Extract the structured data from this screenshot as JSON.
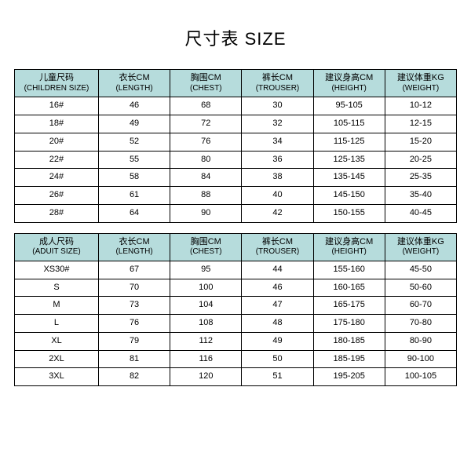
{
  "title": "尺寸表 SIZE",
  "colors": {
    "header_bg": "#b6dcdc",
    "border": "#000000",
    "background": "#ffffff",
    "text": "#000000"
  },
  "children_table": {
    "headers": [
      {
        "main": "儿童尺码",
        "sub": "(CHILDREN SIZE)"
      },
      {
        "main": "衣长CM",
        "sub": "(LENGTH)"
      },
      {
        "main": "胸围CM",
        "sub": "(CHEST)"
      },
      {
        "main": "裤长CM",
        "sub": "(TROUSER)"
      },
      {
        "main": "建议身高CM",
        "sub": "(HEIGHT)"
      },
      {
        "main": "建议体重KG",
        "sub": "(WEIGHT)"
      }
    ],
    "rows": [
      [
        "16#",
        "46",
        "68",
        "30",
        "95-105",
        "10-12"
      ],
      [
        "18#",
        "49",
        "72",
        "32",
        "105-115",
        "12-15"
      ],
      [
        "20#",
        "52",
        "76",
        "34",
        "115-125",
        "15-20"
      ],
      [
        "22#",
        "55",
        "80",
        "36",
        "125-135",
        "20-25"
      ],
      [
        "24#",
        "58",
        "84",
        "38",
        "135-145",
        "25-35"
      ],
      [
        "26#",
        "61",
        "88",
        "40",
        "145-150",
        "35-40"
      ],
      [
        "28#",
        "64",
        "90",
        "42",
        "150-155",
        "40-45"
      ]
    ]
  },
  "adult_table": {
    "headers": [
      {
        "main": "成人尺码",
        "sub": "(ADUIT SIZE)"
      },
      {
        "main": "衣长CM",
        "sub": "(LENGTH)"
      },
      {
        "main": "胸围CM",
        "sub": "(CHEST)"
      },
      {
        "main": "裤长CM",
        "sub": "(TROUSER)"
      },
      {
        "main": "建议身高CM",
        "sub": "(HEIGHT)"
      },
      {
        "main": "建议体重KG",
        "sub": "(WEIGHT)"
      }
    ],
    "rows": [
      [
        "XS30#",
        "67",
        "95",
        "44",
        "155-160",
        "45-50"
      ],
      [
        "S",
        "70",
        "100",
        "46",
        "160-165",
        "50-60"
      ],
      [
        "M",
        "73",
        "104",
        "47",
        "165-175",
        "60-70"
      ],
      [
        "L",
        "76",
        "108",
        "48",
        "175-180",
        "70-80"
      ],
      [
        "XL",
        "79",
        "112",
        "49",
        "180-185",
        "80-90"
      ],
      [
        "2XL",
        "81",
        "116",
        "50",
        "185-195",
        "90-100"
      ],
      [
        "3XL",
        "82",
        "120",
        "51",
        "195-205",
        "100-105"
      ]
    ]
  }
}
